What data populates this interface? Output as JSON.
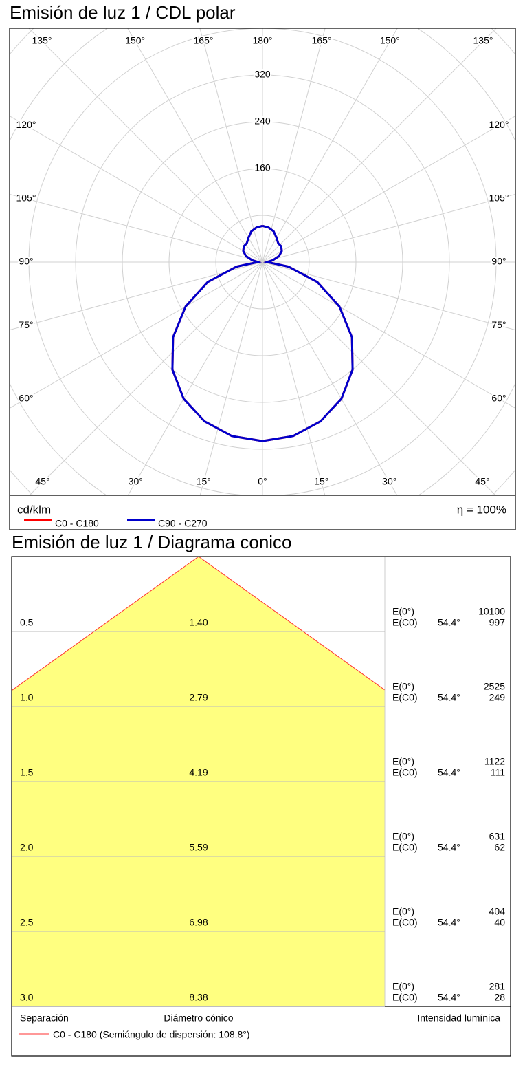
{
  "chart_data": [
    {
      "type": "polar",
      "title": "Emisión de luz 1 / CDL polar",
      "angle_ticks": [
        {
          "value": 0,
          "label": "0°"
        },
        {
          "value": 15,
          "label": "15°"
        },
        {
          "value": 30,
          "label": "30°"
        },
        {
          "value": 45,
          "label": "45°"
        },
        {
          "value": 60,
          "label": "60°"
        },
        {
          "value": 75,
          "label": "75°"
        },
        {
          "value": 90,
          "label": "90°"
        },
        {
          "value": 105,
          "label": "105°"
        },
        {
          "value": 120,
          "label": "120°"
        },
        {
          "value": 135,
          "label": "135°"
        },
        {
          "value": 150,
          "label": "150°"
        },
        {
          "value": 165,
          "label": "165°"
        },
        {
          "value": 180,
          "label": "180°"
        }
      ],
      "rlim": [
        0,
        400
      ],
      "rticks": [
        160,
        240,
        320
      ],
      "rgrid": [
        80,
        160,
        240,
        320,
        400,
        480,
        560,
        640
      ],
      "unit": "cd/klm",
      "efficiency": "η = 100%",
      "angles": [
        0,
        10,
        20,
        30,
        40,
        50,
        60,
        70,
        80,
        90,
        100,
        110,
        120,
        130,
        140,
        150,
        160,
        170,
        180
      ],
      "series": [
        {
          "name": "C0 - C180",
          "color": "#ff0000",
          "values": [
            306,
            302,
            290,
            270,
            240,
            200,
            152,
            100,
            45,
            8,
            18,
            30,
            38,
            42,
            42,
            48,
            56,
            60,
            62
          ]
        },
        {
          "name": "C90 - C270",
          "color": "#0000cc",
          "values": [
            306,
            302,
            290,
            270,
            240,
            200,
            152,
            100,
            45,
            8,
            18,
            30,
            38,
            42,
            42,
            48,
            56,
            60,
            62
          ]
        }
      ]
    },
    {
      "type": "cone",
      "title": "Emisión de luz 1 / Diagrama conico",
      "ylim": [
        0,
        3
      ],
      "half_angle": 54.4,
      "half_angle_label": "54.4°",
      "color": "#ff3030",
      "fill": "#ffff80",
      "heights": [
        0.5,
        1,
        1.5,
        2,
        2.5,
        3
      ],
      "height_labels": [
        "0.5",
        "1.0",
        "1.5",
        "2.0",
        "2.5",
        "3.0"
      ],
      "diameters": [
        1.4,
        2.79,
        4.19,
        5.59,
        6.98,
        8.38
      ],
      "diameter_labels": [
        "1.40",
        "2.79",
        "4.19",
        "5.59",
        "6.98",
        "8.38"
      ],
      "e0_label": "E(0°)",
      "ec0_label": "E(C0)",
      "e0": [
        10100,
        2525,
        1122,
        631,
        404,
        281
      ],
      "ec0": [
        997,
        249,
        111,
        62,
        40,
        28
      ],
      "footer": [
        "Separación",
        "Diámetro cónico",
        "Intensidad lumínica"
      ],
      "legend": "C0 - C180 (Semiángulo de dispersión: 108.8°)"
    }
  ]
}
